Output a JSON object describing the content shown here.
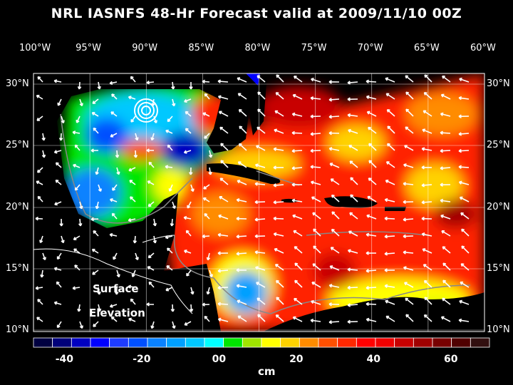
{
  "title": "NRL IASNFS  48-Hr Forecast valid at 2009/11/10 00Z",
  "lon_labels": [
    "100°W",
    "95°W",
    "90°W",
    "85°W",
    "80°W",
    "75°W",
    "70°W",
    "65°W",
    "60°W"
  ],
  "lat_labels": [
    "30°N",
    "25°N",
    "20°N",
    "15°N",
    "10°N"
  ],
  "annotation": {
    "line1": "Surface",
    "line2": "Elevation"
  },
  "colorbar": {
    "unit": "cm",
    "tick_labels": [
      "-40",
      "-20",
      "00",
      "20",
      "40",
      "60"
    ],
    "range": [
      -48,
      70
    ],
    "colors": [
      "#000040",
      "#00007a",
      "#0000c0",
      "#0000ff",
      "#1e3cff",
      "#0050ff",
      "#0a82ff",
      "#00a0ff",
      "#00c8ff",
      "#00ffff",
      "#00e600",
      "#a0e600",
      "#ffff00",
      "#ffd200",
      "#ff8c00",
      "#ff5000",
      "#ff2800",
      "#ff0000",
      "#f00000",
      "#c80000",
      "#a00000",
      "#780000",
      "#500000",
      "#321010"
    ]
  }
}
